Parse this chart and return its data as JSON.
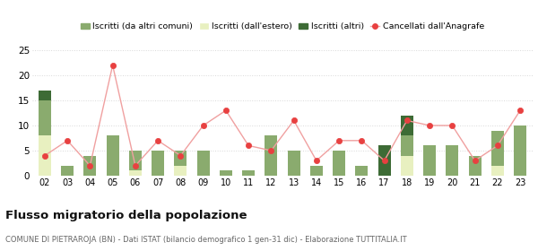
{
  "years": [
    "02",
    "03",
    "04",
    "05",
    "06",
    "07",
    "08",
    "09",
    "10",
    "11",
    "12",
    "13",
    "14",
    "15",
    "16",
    "17",
    "18",
    "19",
    "20",
    "21",
    "22",
    "23"
  ],
  "iscritti_altri_comuni": [
    7,
    2,
    4,
    8,
    4,
    5,
    3,
    5,
    1,
    1,
    8,
    5,
    2,
    5,
    2,
    0,
    4,
    6,
    6,
    4,
    7,
    10
  ],
  "iscritti_estero": [
    8,
    0,
    0,
    0,
    1,
    0,
    2,
    0,
    0,
    0,
    0,
    0,
    0,
    0,
    0,
    0,
    4,
    0,
    0,
    0,
    2,
    0
  ],
  "iscritti_altri": [
    2,
    0,
    0,
    0,
    0,
    0,
    0,
    0,
    0,
    0,
    0,
    0,
    0,
    0,
    0,
    6,
    4,
    0,
    0,
    0,
    0,
    0
  ],
  "cancellati": [
    4,
    7,
    2,
    22,
    2,
    7,
    4,
    10,
    13,
    6,
    5,
    11,
    3,
    7,
    7,
    3,
    11,
    10,
    10,
    3,
    6,
    13
  ],
  "color_altri_comuni": "#8aab6e",
  "color_estero": "#e8f0c0",
  "color_altri": "#3d6b35",
  "color_cancellati": "#e84040",
  "color_cancellati_line": "#f0a0a0",
  "title": "Flusso migratorio della popolazione",
  "subtitle": "COMUNE DI PIETRAROJA (BN) - Dati ISTAT (bilancio demografico 1 gen-31 dic) - Elaborazione TUTTITALIA.IT",
  "legend_labels": [
    "Iscritti (da altri comuni)",
    "Iscritti (dall'estero)",
    "Iscritti (altri)",
    "Cancellati dall'Anagrafe"
  ],
  "ylim": [
    0,
    25
  ],
  "yticks": [
    0,
    5,
    10,
    15,
    20,
    25
  ],
  "background_color": "#ffffff",
  "grid_color": "#d8d8d8"
}
